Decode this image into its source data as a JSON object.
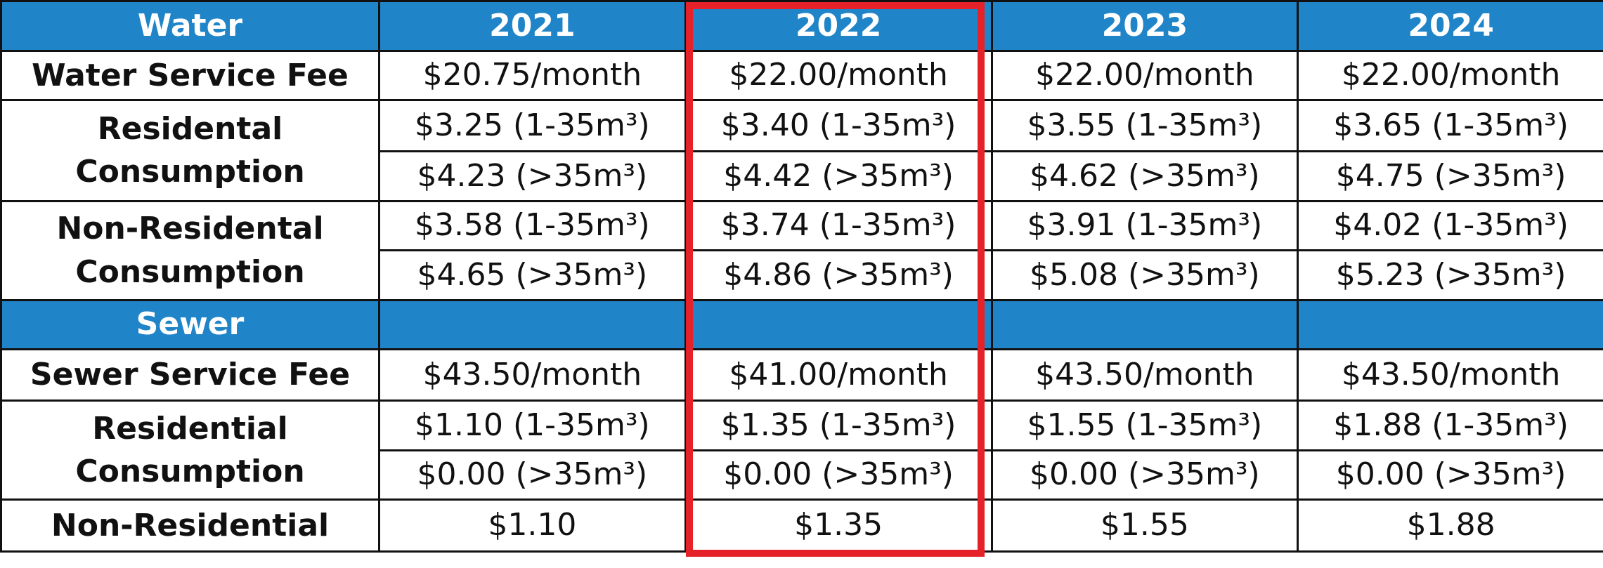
{
  "header": {
    "category": "Water",
    "years": [
      "2021",
      "2022",
      "2023",
      "2024"
    ]
  },
  "water_rows": [
    {
      "label": [
        "Water Service Fee"
      ],
      "values": [
        [
          "$20.75/month"
        ],
        [
          "$22.00/month"
        ],
        [
          "$22.00/month"
        ],
        [
          "$22.00/month"
        ]
      ]
    },
    {
      "label": [
        "Residental",
        "Consumption"
      ],
      "values": [
        [
          "$3.25 (1-35m³)",
          "$4.23 (>35m³)"
        ],
        [
          "$3.40 (1-35m³)",
          "$4.42 (>35m³)"
        ],
        [
          "$3.55 (1-35m³)",
          "$4.62 (>35m³)"
        ],
        [
          "$3.65 (1-35m³)",
          "$4.75 (>35m³)"
        ]
      ]
    },
    {
      "label": [
        "Non-Residental",
        "Consumption"
      ],
      "values": [
        [
          "$3.58 (1-35m³)",
          "$4.65 (>35m³)"
        ],
        [
          "$3.74 (1-35m³)",
          "$4.86 (>35m³)"
        ],
        [
          "$3.91 (1-35m³)",
          "$5.08 (>35m³)"
        ],
        [
          "$4.02 (1-35m³)",
          "$5.23 (>35m³)"
        ]
      ]
    }
  ],
  "sewer_band": {
    "category": "Sewer"
  },
  "sewer_rows": [
    {
      "label": [
        "Sewer Service Fee"
      ],
      "values": [
        [
          "$43.50/month"
        ],
        [
          "$41.00/month"
        ],
        [
          "$43.50/month"
        ],
        [
          "$43.50/month"
        ]
      ]
    },
    {
      "label": [
        "Residential",
        "Consumption"
      ],
      "values": [
        [
          "$1.10 (1-35m³)",
          "$0.00 (>35m³)"
        ],
        [
          "$1.35 (1-35m³)",
          "$0.00 (>35m³)"
        ],
        [
          "$1.55 (1-35m³)",
          "$0.00 (>35m³)"
        ],
        [
          "$1.88 (1-35m³)",
          "$0.00 (>35m³)"
        ]
      ]
    },
    {
      "label": [
        "Non-Residential"
      ],
      "values": [
        [
          "$1.10"
        ],
        [
          "$1.35"
        ],
        [
          "$1.55"
        ],
        [
          "$1.88"
        ]
      ]
    }
  ],
  "highlight": {
    "year": "2022",
    "color": "#e5222a"
  },
  "colors": {
    "band": "#1f84c8",
    "band_text": "#ffffff",
    "border": "#111111"
  }
}
